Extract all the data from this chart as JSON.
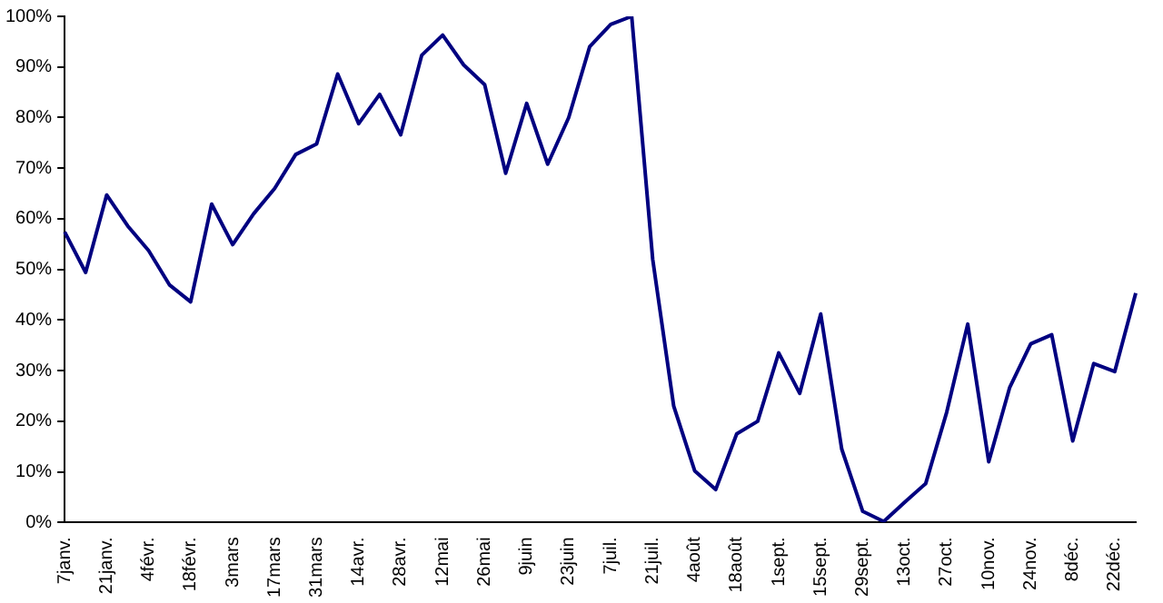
{
  "chart_data": {
    "type": "line",
    "categories": [
      "7janv.",
      null,
      "21janv.",
      null,
      "4févr.",
      null,
      "18févr.",
      null,
      "3mars",
      null,
      "17mars",
      null,
      "31mars",
      null,
      "14avr.",
      null,
      "28avr.",
      null,
      "12mai",
      null,
      "26mai",
      null,
      "9juin",
      null,
      "23juin",
      null,
      "7juil.",
      null,
      "21juil.",
      null,
      "4août",
      null,
      "18août",
      null,
      "1sept.",
      null,
      "15sept.",
      null,
      "29sept.",
      null,
      "13oct.",
      null,
      "27oct.",
      null,
      "10nov.",
      null,
      "24nov.",
      null,
      "8déc.",
      null,
      "22déc.",
      null
    ],
    "series": [
      {
        "color": "#000080",
        "values": [
          57.4,
          49.4,
          64.7,
          58.6,
          53.7,
          46.9,
          43.6,
          62.9,
          54.9,
          61,
          66,
          72.7,
          74.8,
          88.6,
          78.8,
          84.6,
          76.6,
          92.3,
          96.3,
          90.4,
          86.5,
          69,
          82.8,
          70.8,
          80,
          94,
          98.4,
          100,
          52,
          23,
          10.2,
          6.5,
          17.5,
          20,
          33.5,
          25.5,
          41.2,
          14.5,
          2.2,
          0.2,
          4,
          7.7,
          21.8,
          39.2,
          12,
          26.7,
          35.3,
          37.1,
          16.1,
          31.4,
          29.8,
          45.3
        ]
      }
    ],
    "ylim": [
      0,
      100
    ],
    "yticks": [
      {
        "value": 0,
        "label": "0%"
      },
      {
        "value": 10,
        "label": "10%"
      },
      {
        "value": 20,
        "label": "20%"
      },
      {
        "value": 30,
        "label": "30%"
      },
      {
        "value": 40,
        "label": "40%"
      },
      {
        "value": 50,
        "label": "50%"
      },
      {
        "value": 60,
        "label": "60%"
      },
      {
        "value": 70,
        "label": "70%"
      },
      {
        "value": 80,
        "label": "80%"
      },
      {
        "value": 90,
        "label": "90%"
      },
      {
        "value": 100,
        "label": "100%"
      }
    ],
    "grid": false,
    "legend": false,
    "marker": "none",
    "line_style": "solid"
  }
}
